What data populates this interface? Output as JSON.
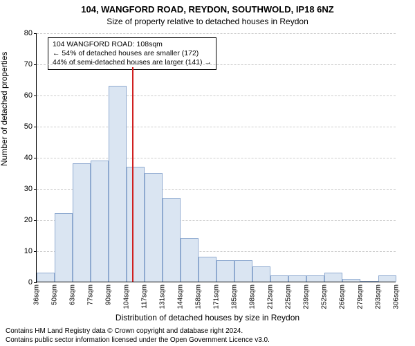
{
  "title": "104, WANGFORD ROAD, REYDON, SOUTHWOLD, IP18 6NZ",
  "subtitle": "Size of property relative to detached houses in Reydon",
  "ylabel": "Number of detached properties",
  "xlabel": "Distribution of detached houses by size in Reydon",
  "footer1": "Contains HM Land Registry data © Crown copyright and database right 2024.",
  "footer2": "Contains public sector information licensed under the Open Government Licence v3.0.",
  "chart": {
    "type": "histogram",
    "background_color": "#ffffff",
    "grid_color": "#cccccc",
    "axis_color": "#000000",
    "bar_fill": "#dae5f2",
    "bar_border": "#8faad0",
    "marker_color": "#d02020",
    "ylim": [
      0,
      80
    ],
    "yticks": [
      0,
      10,
      20,
      30,
      40,
      50,
      60,
      70,
      80
    ],
    "xtick_labels": [
      "36sqm",
      "50sqm",
      "63sqm",
      "77sqm",
      "90sqm",
      "104sqm",
      "117sqm",
      "131sqm",
      "144sqm",
      "158sqm",
      "171sqm",
      "185sqm",
      "198sqm",
      "212sqm",
      "225sqm",
      "239sqm",
      "252sqm",
      "266sqm",
      "279sqm",
      "293sqm",
      "306sqm"
    ],
    "values": [
      3,
      22,
      38,
      39,
      63,
      37,
      35,
      27,
      14,
      8,
      7,
      7,
      5,
      2,
      2,
      2,
      3,
      1,
      0,
      2
    ],
    "marker_bin_index": 5,
    "marker_value_sqm": 108,
    "annotation": {
      "line1": "104 WANGFORD ROAD: 108sqm",
      "line2": "← 54% of detached houses are smaller (172)",
      "line3": "44% of semi-detached houses are larger (141) →"
    }
  }
}
